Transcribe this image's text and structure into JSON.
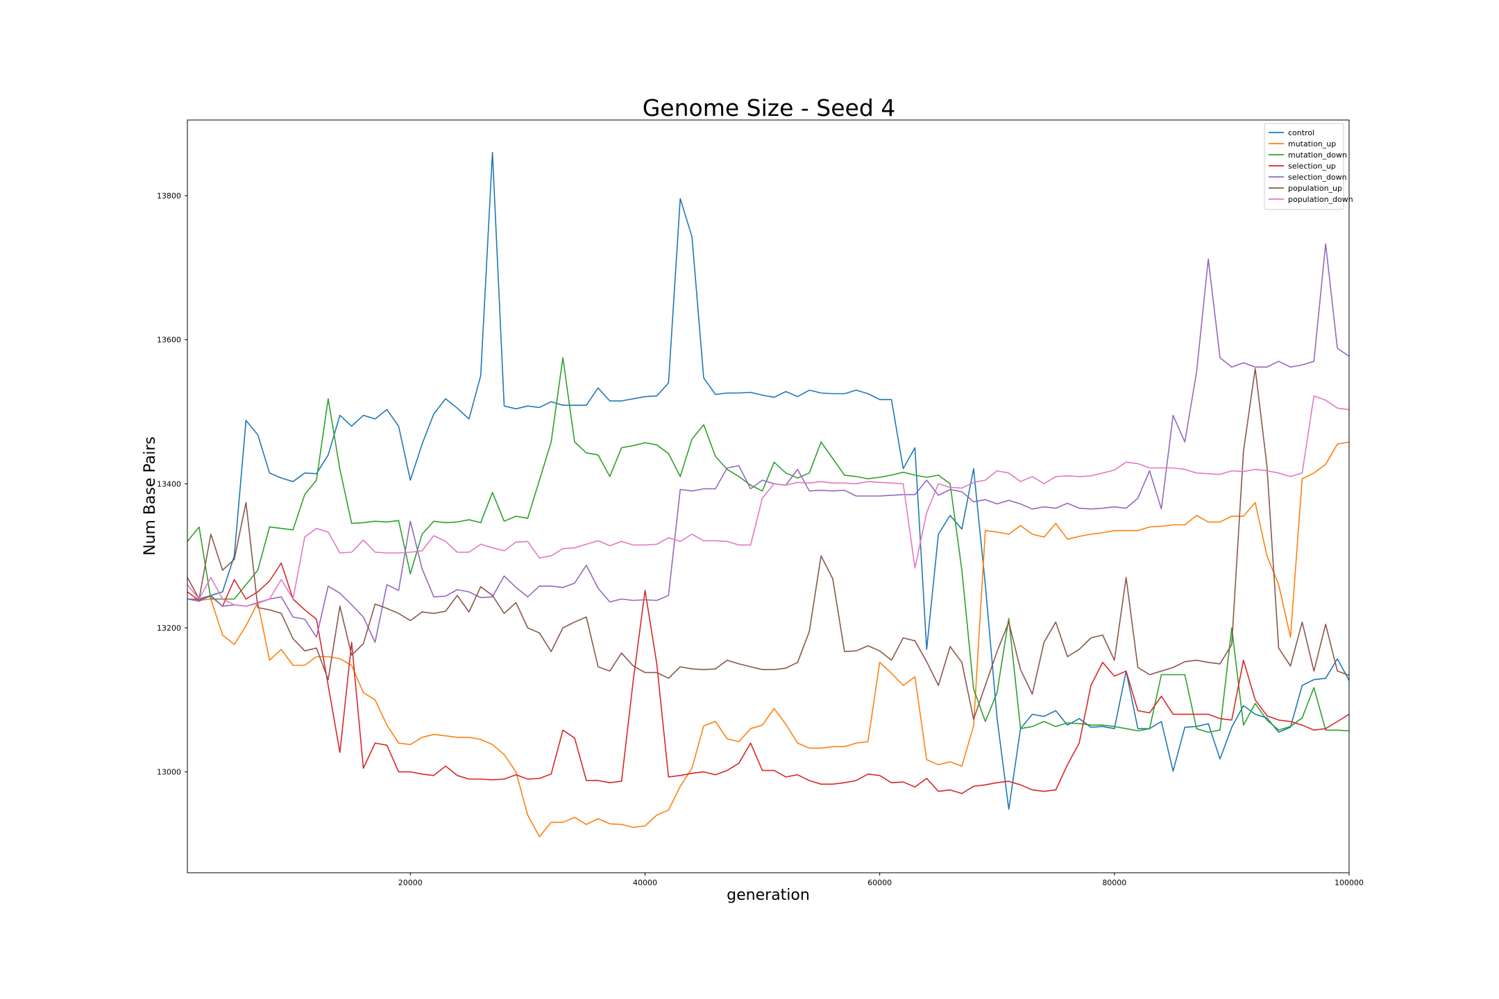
{
  "chart_data": {
    "type": "line",
    "title": "Genome Size - Seed 4",
    "xlabel": "generation",
    "ylabel": "Num Base Pairs",
    "xlim": [
      1000,
      100000
    ],
    "ylim": [
      12860,
      13905
    ],
    "xticks": [
      20000,
      40000,
      60000,
      80000,
      100000
    ],
    "xtick_labels": [
      "20000",
      "40000",
      "60000",
      "80000",
      "100000"
    ],
    "yticks": [
      13000,
      13200,
      13400,
      13600,
      13800
    ],
    "ytick_labels": [
      "13000",
      "13200",
      "13400",
      "13600",
      "13800"
    ],
    "grid": false,
    "legend_position": "top-right",
    "x": [
      1000,
      2000,
      3000,
      4000,
      5000,
      6000,
      7000,
      8000,
      9000,
      10000,
      11000,
      12000,
      13000,
      14000,
      15000,
      16000,
      17000,
      18000,
      19000,
      20000,
      21000,
      22000,
      23000,
      24000,
      25000,
      26000,
      27000,
      28000,
      29000,
      30000,
      31000,
      32000,
      33000,
      34000,
      35000,
      36000,
      37000,
      38000,
      39000,
      40000,
      41000,
      42000,
      43000,
      44000,
      45000,
      46000,
      47000,
      48000,
      49000,
      50000,
      51000,
      52000,
      53000,
      54000,
      55000,
      56000,
      57000,
      58000,
      59000,
      60000,
      61000,
      62000,
      63000,
      64000,
      65000,
      66000,
      67000,
      68000,
      69000,
      70000,
      71000,
      72000,
      73000,
      74000,
      75000,
      76000,
      77000,
      78000,
      79000,
      80000,
      81000,
      82000,
      83000,
      84000,
      85000,
      86000,
      87000,
      88000,
      89000,
      90000,
      91000,
      92000,
      93000,
      94000,
      95000,
      96000,
      97000,
      98000,
      99000,
      100000
    ],
    "series": [
      {
        "name": "control",
        "color": "#1f77b4",
        "values": [
          13240,
          13240,
          13245,
          13250,
          13300,
          13488,
          13468,
          13415,
          13408,
          13403,
          13415,
          13414,
          13440,
          13495,
          13480,
          13495,
          13490,
          13503,
          13480,
          13405,
          13455,
          13497,
          13518,
          13505,
          13490,
          13550,
          13860,
          13508,
          13504,
          13508,
          13506,
          13514,
          13509,
          13509,
          13509,
          13533,
          13515,
          13515,
          13518,
          13521,
          13522,
          13540,
          13796,
          13743,
          13547,
          13524,
          13526,
          13526,
          13527,
          13523,
          13520,
          13528,
          13521,
          13530,
          13526,
          13525,
          13525,
          13530,
          13525,
          13517,
          13517,
          13421,
          13450,
          13170,
          13330,
          13356,
          13337,
          13421,
          13260,
          13075,
          12948,
          13060,
          13080,
          13077,
          13085,
          13065,
          13074,
          13062,
          13063,
          13060,
          13140,
          13060,
          13060,
          13070,
          13001,
          13062,
          13063,
          13067,
          13018,
          13062,
          13092,
          13080,
          13075,
          13055,
          13062,
          13120,
          13128,
          13130,
          13157,
          13127
        ]
      },
      {
        "name": "mutation_up",
        "color": "#ff7f0e",
        "values": [
          13240,
          13238,
          13240,
          13190,
          13177,
          13203,
          13235,
          13155,
          13170,
          13148,
          13148,
          13160,
          13160,
          13157,
          13148,
          13110,
          13100,
          13065,
          13040,
          13038,
          13048,
          13052,
          13050,
          13048,
          13048,
          13045,
          13038,
          13024,
          13000,
          12940,
          12910,
          12930,
          12930,
          12937,
          12927,
          12935,
          12928,
          12927,
          12923,
          12925,
          12940,
          12947,
          12980,
          13005,
          13064,
          13070,
          13046,
          13042,
          13060,
          13065,
          13088,
          13066,
          13040,
          13033,
          13033,
          13035,
          13035,
          13040,
          13042,
          13152,
          13137,
          13120,
          13132,
          13017,
          13010,
          13014,
          13008,
          13064,
          13335,
          13333,
          13330,
          13342,
          13330,
          13326,
          13345,
          13323,
          13327,
          13330,
          13332,
          13335,
          13335,
          13335,
          13340,
          13341,
          13343,
          13343,
          13356,
          13347,
          13347,
          13355,
          13355,
          13374,
          13300,
          13260,
          13187,
          13407,
          13415,
          13427,
          13455,
          13458
        ]
      },
      {
        "name": "mutation_down",
        "color": "#2ca02c",
        "values": [
          13320,
          13340,
          13240,
          13240,
          13240,
          13260,
          13280,
          13340,
          13338,
          13336,
          13385,
          13405,
          13518,
          13420,
          13345,
          13346,
          13348,
          13347,
          13349,
          13275,
          13330,
          13348,
          13346,
          13347,
          13350,
          13346,
          13388,
          13348,
          13355,
          13352,
          13405,
          13458,
          13575,
          13458,
          13443,
          13440,
          13410,
          13450,
          13453,
          13457,
          13454,
          13442,
          13410,
          13462,
          13482,
          13438,
          13420,
          13410,
          13398,
          13390,
          13430,
          13415,
          13408,
          13415,
          13458,
          13435,
          13412,
          13410,
          13407,
          13409,
          13412,
          13416,
          13412,
          13409,
          13412,
          13400,
          13280,
          13115,
          13070,
          13110,
          13213,
          13060,
          13063,
          13070,
          13063,
          13068,
          13067,
          13065,
          13065,
          13063,
          13060,
          13057,
          13060,
          13135,
          13135,
          13135,
          13060,
          13055,
          13058,
          13200,
          13065,
          13095,
          13072,
          13058,
          13063,
          13075,
          13117,
          13058,
          13058,
          13057
        ]
      },
      {
        "name": "selection_up",
        "color": "#d62728",
        "values": [
          13250,
          13238,
          13244,
          13230,
          13267,
          13240,
          13250,
          13265,
          13290,
          13240,
          13225,
          13212,
          13120,
          13027,
          13180,
          13005,
          13040,
          13037,
          13000,
          13000,
          12997,
          12995,
          13008,
          12995,
          12990,
          12990,
          12989,
          12990,
          12996,
          12990,
          12991,
          12997,
          13058,
          13047,
          12988,
          12988,
          12985,
          12987,
          13127,
          13252,
          13150,
          12993,
          12995,
          12998,
          13000,
          12996,
          13002,
          13012,
          13040,
          13002,
          13002,
          12993,
          12996,
          12988,
          12983,
          12983,
          12985,
          12988,
          12997,
          12995,
          12985,
          12986,
          12979,
          12991,
          12973,
          12975,
          12970,
          12980,
          12982,
          12985,
          12987,
          12982,
          12975,
          12973,
          12975,
          13010,
          13040,
          13120,
          13152,
          13133,
          13140,
          13085,
          13082,
          13105,
          13080,
          13080,
          13080,
          13080,
          13074,
          13072,
          13155,
          13100,
          13078,
          13072,
          13070,
          13065,
          13058,
          13060,
          13070,
          13080
        ]
      },
      {
        "name": "selection_down",
        "color": "#9467bd",
        "values": [
          13240,
          13237,
          13245,
          13230,
          13232,
          13230,
          13235,
          13240,
          13243,
          13215,
          13212,
          13187,
          13258,
          13248,
          13232,
          13215,
          13180,
          13260,
          13252,
          13348,
          13282,
          13243,
          13244,
          13253,
          13250,
          13242,
          13243,
          13272,
          13256,
          13243,
          13258,
          13258,
          13256,
          13262,
          13287,
          13255,
          13236,
          13240,
          13238,
          13239,
          13238,
          13245,
          13392,
          13390,
          13393,
          13393,
          13422,
          13425,
          13393,
          13405,
          13400,
          13398,
          13420,
          13390,
          13391,
          13390,
          13391,
          13383,
          13383,
          13383,
          13384,
          13385,
          13385,
          13405,
          13384,
          13392,
          13389,
          13375,
          13378,
          13372,
          13377,
          13372,
          13365,
          13368,
          13366,
          13373,
          13366,
          13365,
          13366,
          13368,
          13366,
          13380,
          13418,
          13365,
          13495,
          13458,
          13555,
          13712,
          13575,
          13562,
          13568,
          13562,
          13562,
          13570,
          13562,
          13565,
          13570,
          13733,
          13588,
          13577
        ]
      },
      {
        "name": "population_up",
        "color": "#8c564b",
        "values": [
          13270,
          13240,
          13330,
          13280,
          13295,
          13374,
          13228,
          13225,
          13220,
          13185,
          13168,
          13172,
          13128,
          13230,
          13162,
          13178,
          13233,
          13227,
          13220,
          13210,
          13222,
          13220,
          13223,
          13245,
          13222,
          13257,
          13245,
          13220,
          13235,
          13200,
          13193,
          13167,
          13200,
          13208,
          13215,
          13146,
          13140,
          13165,
          13147,
          13138,
          13138,
          13130,
          13146,
          13143,
          13142,
          13143,
          13155,
          13150,
          13146,
          13142,
          13142,
          13144,
          13152,
          13195,
          13300,
          13268,
          13167,
          13168,
          13175,
          13168,
          13155,
          13186,
          13182,
          13153,
          13120,
          13174,
          13152,
          13073,
          13120,
          13167,
          13208,
          13142,
          13108,
          13180,
          13208,
          13160,
          13170,
          13186,
          13190,
          13155,
          13270,
          13145,
          13135,
          13140,
          13145,
          13153,
          13155,
          13152,
          13150,
          13177,
          13445,
          13560,
          13425,
          13172,
          13147,
          13208,
          13140,
          13205,
          13140,
          13134
        ]
      },
      {
        "name": "population_down",
        "color": "#e377c2",
        "values": [
          13260,
          13240,
          13270,
          13240,
          13232,
          13230,
          13234,
          13240,
          13267,
          13240,
          13326,
          13338,
          13333,
          13304,
          13305,
          13322,
          13305,
          13304,
          13304,
          13305,
          13307,
          13328,
          13320,
          13305,
          13305,
          13316,
          13311,
          13307,
          13319,
          13320,
          13297,
          13300,
          13310,
          13311,
          13316,
          13321,
          13314,
          13320,
          13315,
          13315,
          13316,
          13325,
          13320,
          13330,
          13321,
          13321,
          13320,
          13315,
          13315,
          13380,
          13400,
          13398,
          13402,
          13401,
          13403,
          13401,
          13401,
          13400,
          13403,
          13402,
          13401,
          13400,
          13283,
          13360,
          13400,
          13395,
          13394,
          13402,
          13405,
          13418,
          13415,
          13403,
          13410,
          13400,
          13410,
          13411,
          13410,
          13411,
          13415,
          13419,
          13430,
          13428,
          13422,
          13422,
          13422,
          13420,
          13415,
          13414,
          13413,
          13418,
          13417,
          13420,
          13418,
          13415,
          13410,
          13415,
          13522,
          13516,
          13505,
          13503
        ]
      }
    ]
  }
}
